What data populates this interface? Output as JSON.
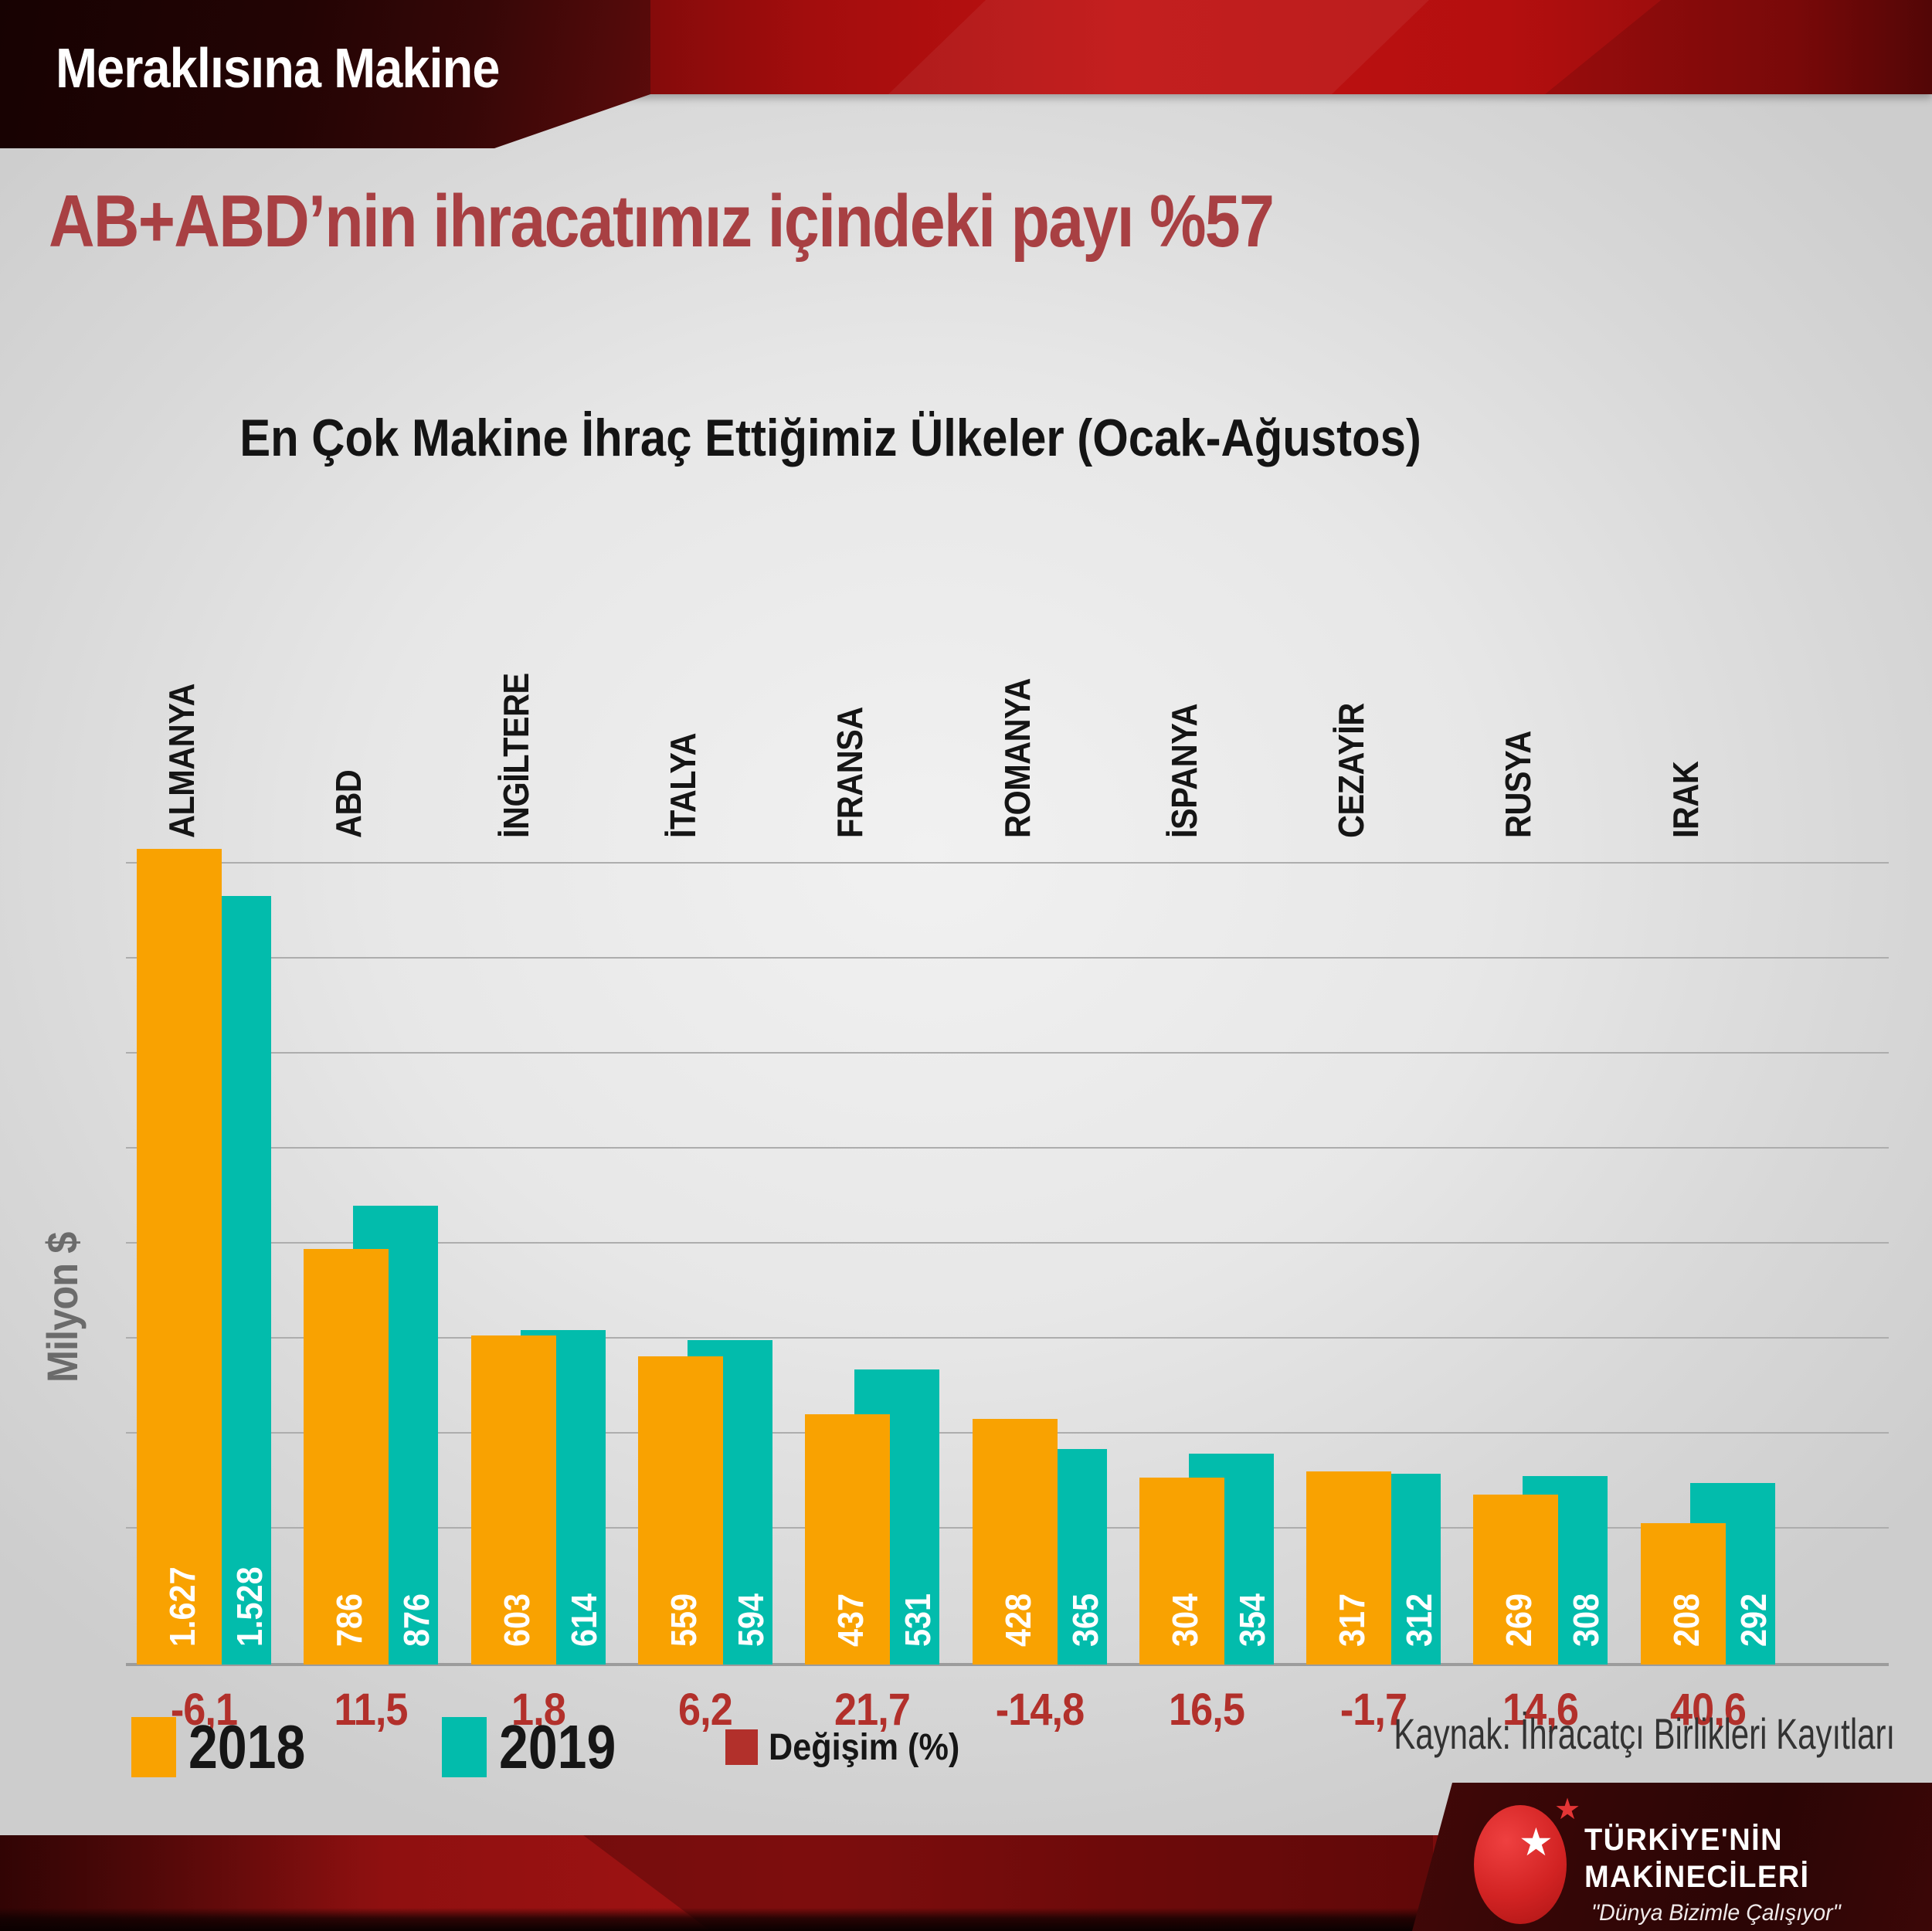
{
  "banner": {
    "app_title": "Meraklısına Makine"
  },
  "header": {
    "title": "AB+ABD’nin ihracatımız içindeki payı %57"
  },
  "chart_data": {
    "type": "bar",
    "title": "En Çok Makine İhraç Ettiğimiz Ülkeler (Ocak-Ağustos)",
    "ylabel": "Milyon $",
    "ylim": [
      0,
      1700
    ],
    "gridline_step": 200,
    "gridline_max": 1600,
    "grid": "horizontal-on",
    "legend_position": "bottom-left",
    "categories": [
      "ALMANYA",
      "ABD",
      "İNGİLTERE",
      "İTALYA",
      "FRANSA",
      "ROMANYA",
      "İSPANYA",
      "CEZAYİR",
      "RUSYA",
      "IRAK"
    ],
    "series": [
      {
        "name": "2018",
        "color": "#F9A201",
        "values": [
          1627,
          786,
          603,
          559,
          437,
          428,
          304,
          317,
          269,
          208
        ],
        "value_labels": [
          "1.627",
          "786",
          "603",
          "559",
          "437",
          "428",
          "304",
          "317",
          "269",
          "208"
        ]
      },
      {
        "name": "2019",
        "color": "#02BCAC",
        "values": [
          1528,
          876,
          614,
          594,
          531,
          365,
          354,
          312,
          308,
          292
        ],
        "value_labels": [
          "1.528",
          "876",
          "614",
          "594",
          "531",
          "365",
          "354",
          "312",
          "308",
          "292"
        ]
      }
    ],
    "change_series": {
      "name": "Değişim (%)",
      "color": "#B2302B",
      "values": [
        "-6,1",
        "11,5",
        "1,8",
        "6,2",
        "21,7",
        "-14,8",
        "16,5",
        "-1,7",
        "14,6",
        "40,6"
      ]
    }
  },
  "legend": {
    "year2018": "2018",
    "year2019": "2019",
    "change": "Değişim (%)"
  },
  "source": {
    "text": "Kaynak: İhracatçı Birlikleri Kayıtları"
  },
  "logo": {
    "line1": "TÜRKİYE'NİN",
    "line2": "MAKİNECİLERİ",
    "tagline": "\"Dünya Bizimle Çalışıyor\"",
    "star": "★"
  },
  "colors": {
    "orange_2018": "#F9A201",
    "teal_2019": "#02BCAC",
    "change_red": "#B2302B",
    "title_red": "#A84043",
    "banner_red": "#C11111",
    "background_gray": "#E0E0E0"
  }
}
